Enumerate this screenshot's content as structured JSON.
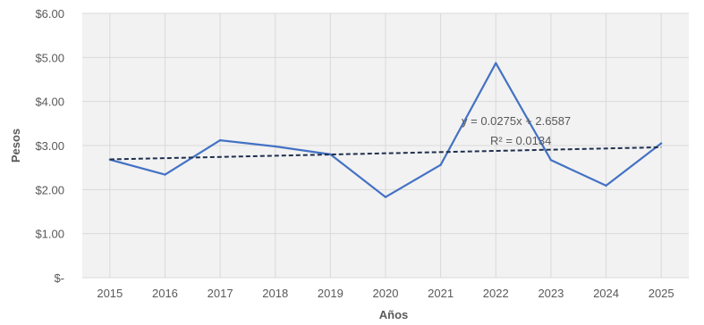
{
  "chart_data": {
    "type": "line",
    "title": "",
    "xlabel": "Años",
    "ylabel": "Pesos",
    "x": [
      "2015",
      "2016",
      "2017",
      "2018",
      "2019",
      "2020",
      "2021",
      "2022",
      "2023",
      "2024",
      "2025"
    ],
    "y_ticks": [
      "$-",
      "$1.00",
      "$2.00",
      "$3.00",
      "$4.00",
      "$5.00",
      "$6.00"
    ],
    "ylim": [
      0,
      6
    ],
    "grid": true,
    "series": [
      {
        "values": [
          2.68,
          2.34,
          3.12,
          2.98,
          2.8,
          1.83,
          2.56,
          4.87,
          2.67,
          2.09,
          3.05
        ],
        "color": "#4472c4"
      }
    ],
    "trendline": {
      "type": "linear",
      "slope": 0.0275,
      "intercept": 2.6587,
      "equation": "y = 0.0275x + 2.6587",
      "r2": "R² = 0.0134",
      "color": "#1f2f4f",
      "style": "dashed"
    },
    "plot_background": "#f2f2f2",
    "gridline_color": "#d9d9d9"
  }
}
